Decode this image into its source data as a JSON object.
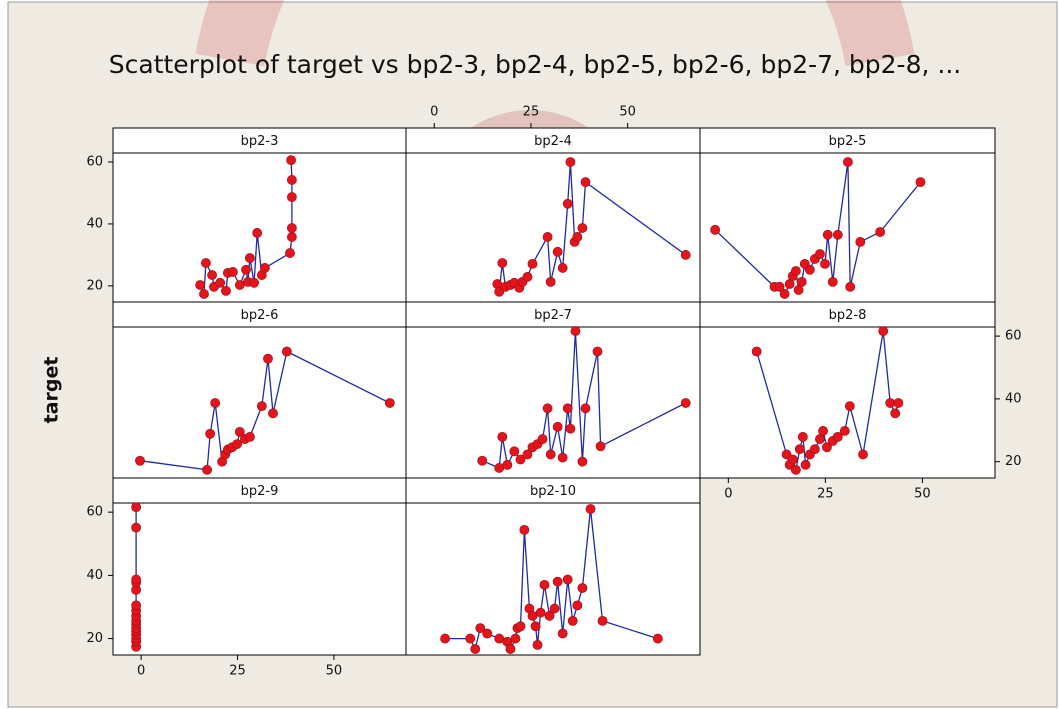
{
  "chart_data": {
    "type": "scatter",
    "title": "Scatterplot of target vs bp2-3, bp2-4, bp2-5, bp2-6, bp2-7, bp2-8, ...",
    "y_label": "target",
    "xlim": [
      -7.3,
      68.7
    ],
    "ylim": [
      14.8,
      62.9
    ],
    "xticks": [
      0,
      25,
      50
    ],
    "yticks": [
      20,
      40,
      60
    ],
    "marker_color": "#e3141c",
    "line_color": "#1f2ba0",
    "panels": [
      {
        "name": "bp2-3",
        "x": [
          15.3,
          16.3,
          16.8,
          18.4,
          18.9,
          20.5,
          22.0,
          22.5,
          23.8,
          25.6,
          27.2,
          27.7,
          28.2,
          29.3,
          30.1,
          31.3,
          32.1,
          38.6,
          39.1,
          39.1,
          39.1,
          39.1,
          38.9
        ],
        "values": [
          20.3,
          17.4,
          27.4,
          23.5,
          19.7,
          21.0,
          18.4,
          24.2,
          24.5,
          20.3,
          25.2,
          21.3,
          29.0,
          21.0,
          37.1,
          23.5,
          25.8,
          30.6,
          35.8,
          38.7,
          48.7,
          54.2,
          60.6
        ]
      },
      {
        "name": "bp2-4",
        "x": [
          16.3,
          16.8,
          17.6,
          18.4,
          19.7,
          20.7,
          22.0,
          22.8,
          24.1,
          25.4,
          29.3,
          30.1,
          31.9,
          33.2,
          34.5,
          35.2,
          36.3,
          37.0,
          38.3,
          39.1,
          65.0
        ],
        "values": [
          20.6,
          18.1,
          27.4,
          19.7,
          20.3,
          21.0,
          19.4,
          21.3,
          22.9,
          27.1,
          35.8,
          21.3,
          31.0,
          25.8,
          46.5,
          60.0,
          34.2,
          35.8,
          38.7,
          53.5,
          30.0
        ]
      },
      {
        "name": "bp2-5",
        "x": [
          -3.4,
          11.9,
          13.2,
          14.5,
          15.8,
          16.6,
          17.4,
          18.1,
          18.9,
          19.7,
          21.0,
          22.3,
          23.6,
          24.9,
          25.6,
          26.9,
          28.2,
          30.8,
          31.4,
          34.0,
          39.1,
          49.5
        ],
        "values": [
          38.1,
          19.7,
          19.7,
          17.4,
          20.6,
          23.2,
          24.8,
          18.7,
          21.3,
          27.1,
          25.2,
          28.7,
          30.3,
          27.1,
          36.5,
          21.3,
          36.5,
          60.0,
          19.7,
          34.2,
          37.4,
          53.5
        ]
      },
      {
        "name": "bp2-6",
        "x": [
          -0.3,
          17.1,
          17.9,
          19.2,
          21.0,
          21.8,
          22.5,
          23.6,
          24.9,
          25.6,
          26.9,
          28.2,
          31.3,
          32.9,
          34.2,
          37.8,
          64.5
        ],
        "values": [
          20.3,
          17.4,
          28.9,
          38.7,
          20.0,
          22.3,
          23.9,
          24.6,
          25.6,
          29.5,
          27.2,
          27.9,
          37.7,
          52.8,
          35.4,
          55.1,
          38.7
        ]
      },
      {
        "name": "bp2-7",
        "x": [
          12.4,
          16.8,
          17.6,
          18.9,
          20.7,
          22.3,
          24.1,
          25.4,
          26.7,
          28.0,
          29.3,
          30.1,
          31.9,
          33.2,
          34.5,
          35.2,
          36.5,
          38.3,
          39.1,
          42.2,
          43.0,
          65.0
        ],
        "values": [
          20.3,
          18.0,
          27.9,
          19.0,
          23.3,
          20.7,
          22.3,
          24.6,
          25.6,
          27.2,
          37.0,
          22.3,
          31.1,
          21.3,
          37.0,
          30.5,
          61.6,
          20.0,
          37.0,
          55.1,
          24.9,
          38.7
        ]
      },
      {
        "name": "bp2-8",
        "x": [
          7.3,
          15.0,
          15.8,
          16.6,
          17.4,
          18.4,
          19.2,
          19.9,
          21.0,
          22.3,
          23.6,
          24.4,
          25.4,
          26.9,
          28.2,
          30.0,
          31.3,
          34.7,
          39.9,
          41.7,
          43.0,
          43.8
        ],
        "values": [
          55.1,
          22.3,
          19.0,
          20.7,
          17.4,
          24.0,
          27.9,
          19.0,
          22.3,
          24.0,
          27.2,
          29.8,
          24.6,
          26.6,
          27.9,
          29.8,
          37.7,
          22.3,
          61.6,
          38.7,
          35.4,
          38.7
        ]
      },
      {
        "name": "bp2-9",
        "x": [
          -1.3,
          -1.3,
          -1.3,
          -1.3,
          -1.3,
          -1.3,
          -1.3,
          -1.3,
          -1.3,
          -1.3,
          -1.3,
          -1.3,
          -1.3,
          -1.3,
          -1.3,
          -1.3
        ],
        "values": [
          17.4,
          19.0,
          20.0,
          21.3,
          22.3,
          23.3,
          24.6,
          25.6,
          27.2,
          28.9,
          30.5,
          35.4,
          37.7,
          38.7,
          55.1,
          61.6
        ]
      },
      {
        "name": "bp2-10",
        "x": [
          2.8,
          9.3,
          10.6,
          11.9,
          13.7,
          16.8,
          18.9,
          19.7,
          21.0,
          21.5,
          22.3,
          23.3,
          24.6,
          25.4,
          26.2,
          26.7,
          27.5,
          28.5,
          29.8,
          31.1,
          31.9,
          33.2,
          34.5,
          35.8,
          37.0,
          38.3,
          40.4,
          43.5,
          57.8
        ],
        "values": [
          20.0,
          20.0,
          16.7,
          23.3,
          21.6,
          20.0,
          19.0,
          16.7,
          20.0,
          23.3,
          23.9,
          54.4,
          29.5,
          27.2,
          23.9,
          18.0,
          28.2,
          37.0,
          27.2,
          29.5,
          38.0,
          21.6,
          38.7,
          25.6,
          30.5,
          36.0,
          61.0,
          25.6,
          20.0
        ]
      }
    ]
  }
}
